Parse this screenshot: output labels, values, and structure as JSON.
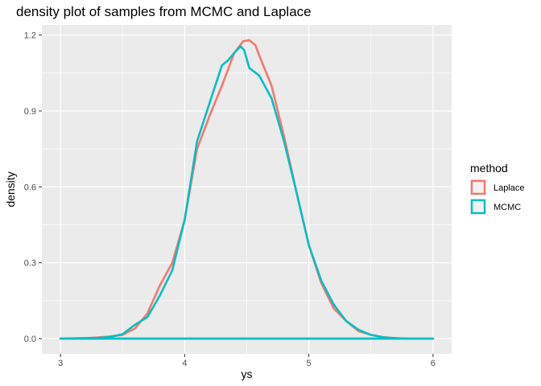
{
  "chart_data": {
    "type": "line",
    "title": "density plot of samples from MCMC and Laplace",
    "xlabel": "ys",
    "ylabel": "density",
    "xlim": [
      2.85,
      6.15
    ],
    "ylim": [
      -0.06,
      1.24
    ],
    "x_ticks": [
      3,
      4,
      5,
      6
    ],
    "x_tick_labels": [
      "3",
      "4",
      "5",
      "6"
    ],
    "y_ticks": [
      0.0,
      0.3,
      0.6,
      0.9,
      1.2
    ],
    "y_tick_labels": [
      "0.0",
      "0.3",
      "0.6",
      "0.9",
      "1.2"
    ],
    "grid": true,
    "legend": {
      "title": "method",
      "position": "right"
    },
    "series": [
      {
        "name": "Laplace",
        "color": "#F8766D",
        "x": [
          3.0,
          3.2,
          3.3,
          3.4,
          3.5,
          3.6,
          3.7,
          3.8,
          3.9,
          4.0,
          4.1,
          4.2,
          4.3,
          4.4,
          4.47,
          4.52,
          4.57,
          4.6,
          4.7,
          4.8,
          4.9,
          5.0,
          5.1,
          5.2,
          5.3,
          5.4,
          5.5,
          5.6,
          5.7,
          5.8,
          6.0,
          3.0
        ],
        "y": [
          0.0,
          0.002,
          0.005,
          0.009,
          0.015,
          0.04,
          0.1,
          0.21,
          0.3,
          0.47,
          0.75,
          0.88,
          1.0,
          1.13,
          1.175,
          1.18,
          1.16,
          1.12,
          1.0,
          0.8,
          0.58,
          0.37,
          0.22,
          0.12,
          0.07,
          0.03,
          0.015,
          0.006,
          0.002,
          0.0,
          0.0,
          0.0
        ]
      },
      {
        "name": "MCMC",
        "color": "#00BFC4",
        "x": [
          3.0,
          3.3,
          3.4,
          3.5,
          3.6,
          3.7,
          3.8,
          3.9,
          4.0,
          4.1,
          4.2,
          4.3,
          4.35,
          4.4,
          4.45,
          4.48,
          4.52,
          4.56,
          4.6,
          4.7,
          4.8,
          4.9,
          5.0,
          5.1,
          5.2,
          5.3,
          5.4,
          5.5,
          5.6,
          5.7,
          5.8,
          6.0,
          3.0
        ],
        "y": [
          0.0,
          0.003,
          0.006,
          0.018,
          0.055,
          0.085,
          0.17,
          0.27,
          0.47,
          0.78,
          0.93,
          1.08,
          1.1,
          1.13,
          1.155,
          1.14,
          1.07,
          1.055,
          1.04,
          0.95,
          0.78,
          0.58,
          0.37,
          0.23,
          0.135,
          0.07,
          0.035,
          0.015,
          0.005,
          0.002,
          0.0,
          0.0,
          0.0
        ]
      }
    ]
  }
}
